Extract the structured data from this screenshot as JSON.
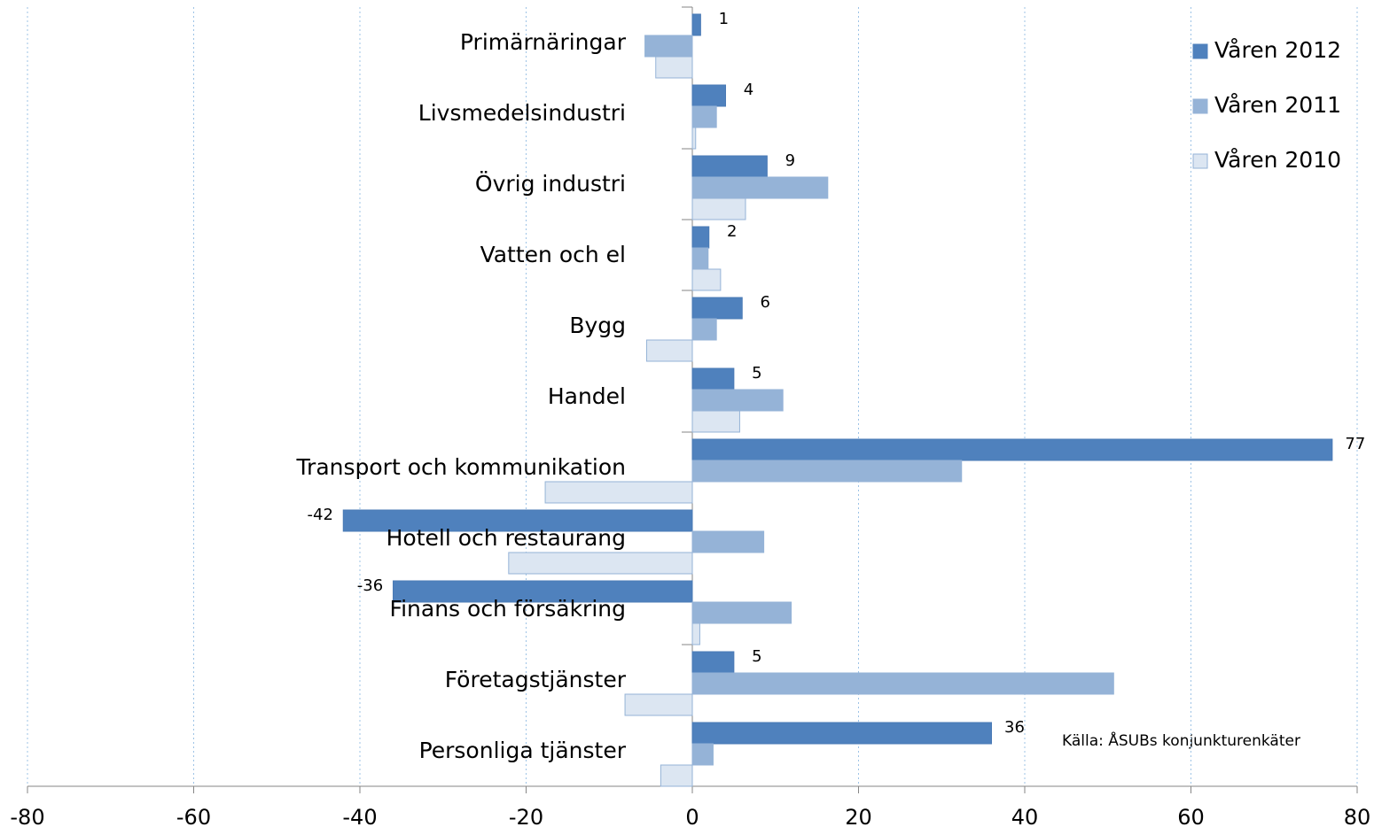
{
  "chart_data": {
    "type": "barh",
    "categories": [
      "Primärnäringar",
      "Livsmedelsindustri",
      "Övrig industri",
      "Vatten och el",
      "Bygg",
      "Handel",
      "Transport och kommunikation",
      "Hotell och restaurang",
      "Finans och försäkring",
      "Företagstjänster",
      "Personliga tjänster"
    ],
    "series": [
      {
        "name": "Våren 2012",
        "color": "#4f81bd",
        "values": [
          1,
          4,
          9,
          2,
          6,
          5,
          77,
          -42,
          -36,
          5,
          36
        ],
        "show_labels": true
      },
      {
        "name": "Våren 2011",
        "color": "#95b3d7",
        "values": [
          -5.7,
          2.9,
          16.3,
          1.9,
          2.9,
          10.9,
          32.4,
          8.6,
          11.9,
          50.7,
          2.5
        ],
        "show_labels": false
      },
      {
        "name": "Våren 2010",
        "color": "#dce6f2",
        "values": [
          -4.4,
          0.4,
          6.4,
          3.4,
          -5.5,
          5.7,
          -17.7,
          -22.1,
          0.9,
          -8.1,
          -3.8
        ],
        "show_labels": false
      }
    ],
    "xlim": [
      -80,
      80
    ],
    "xticks": [
      -80,
      -60,
      -40,
      -20,
      0,
      20,
      40,
      60,
      80
    ],
    "grid": true,
    "legend": "top-right",
    "annotation": "Källa: ÅSUBs konjunkturenkäter"
  }
}
